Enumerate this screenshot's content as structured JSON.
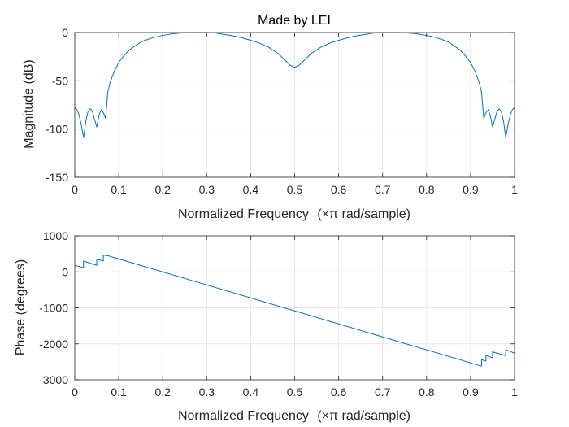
{
  "colors": {
    "series": "#0072BD",
    "grid": "#e6e6e6",
    "axis": "#262626",
    "background": "#ffffff"
  },
  "chart_data": [
    {
      "type": "line",
      "title": "Made by LEI",
      "xlabel_main": "Normalized Frequency",
      "xlabel_unit": "(×π rad/sample)",
      "ylabel": "Magnitude (dB)",
      "xlim": [
        0,
        1
      ],
      "ylim": [
        -150,
        0
      ],
      "xticks": [
        0,
        0.1,
        0.2,
        0.3,
        0.4,
        0.5,
        0.6,
        0.7,
        0.8,
        0.9,
        1
      ],
      "xtick_labels": [
        "0",
        "0.1",
        "0.2",
        "0.3",
        "0.4",
        "0.5",
        "0.6",
        "0.7",
        "0.8",
        "0.9",
        "1"
      ],
      "yticks": [
        0,
        -50,
        -100,
        -150
      ],
      "ytick_labels": [
        "0",
        "-50",
        "-100",
        "-150"
      ],
      "grid": true,
      "series": [
        {
          "x": [
            0,
            0.005,
            0.01,
            0.015,
            0.02,
            0.025,
            0.03,
            0.035,
            0.04,
            0.045,
            0.05,
            0.055,
            0.06,
            0.065,
            0.07,
            0.075,
            0.08,
            0.09,
            0.1,
            0.11,
            0.12,
            0.13,
            0.14,
            0.15,
            0.16,
            0.18,
            0.2,
            0.22,
            0.24,
            0.26,
            0.28,
            0.3,
            0.32,
            0.34,
            0.36,
            0.38,
            0.4,
            0.42,
            0.44,
            0.46,
            0.47,
            0.48,
            0.49,
            0.5,
            0.51,
            0.52,
            0.53,
            0.54,
            0.56,
            0.58,
            0.6,
            0.62,
            0.64,
            0.66,
            0.68,
            0.7,
            0.72,
            0.74,
            0.76,
            0.78,
            0.8,
            0.82,
            0.84,
            0.85,
            0.86,
            0.87,
            0.88,
            0.89,
            0.9,
            0.91,
            0.92,
            0.925,
            0.93,
            0.935,
            0.94,
            0.945,
            0.95,
            0.955,
            0.96,
            0.965,
            0.97,
            0.975,
            0.98,
            0.985,
            0.99,
            0.995,
            1
          ],
          "y": [
            -78,
            -80,
            -86,
            -96,
            -109,
            -92,
            -82,
            -79,
            -82,
            -90,
            -98,
            -86,
            -80,
            -83,
            -89,
            -62,
            -52,
            -40,
            -31,
            -25,
            -20,
            -16,
            -13,
            -10,
            -8,
            -5,
            -3,
            -1.5,
            -0.5,
            -0.1,
            0,
            0,
            -0.5,
            -2,
            -3.5,
            -5.5,
            -8,
            -11,
            -15,
            -21,
            -25,
            -29.5,
            -34,
            -36,
            -34,
            -29.5,
            -25,
            -21,
            -15,
            -11,
            -8,
            -5.5,
            -3.5,
            -2,
            -0.5,
            0,
            0,
            -0.1,
            -0.5,
            -1.5,
            -3,
            -5,
            -8,
            -10,
            -13,
            -16,
            -20,
            -25,
            -31,
            -40,
            -52,
            -62,
            -89,
            -83,
            -80,
            -86,
            -98,
            -90,
            -82,
            -79,
            -82,
            -92,
            -109,
            -96,
            -86,
            -80,
            -78
          ]
        }
      ]
    },
    {
      "type": "line",
      "xlabel_main": "Normalized Frequency",
      "xlabel_unit": "(×π rad/sample)",
      "ylabel": "Phase (degrees)",
      "xlim": [
        0,
        1
      ],
      "ylim": [
        -3000,
        1000
      ],
      "xticks": [
        0,
        0.1,
        0.2,
        0.3,
        0.4,
        0.5,
        0.6,
        0.7,
        0.8,
        0.9,
        1
      ],
      "xtick_labels": [
        "0",
        "0.1",
        "0.2",
        "0.3",
        "0.4",
        "0.5",
        "0.6",
        "0.7",
        "0.8",
        "0.9",
        "1"
      ],
      "yticks": [
        1000,
        0,
        -1000,
        -2000,
        -3000
      ],
      "ytick_labels": [
        "1000",
        "0",
        "-1000",
        "-2000",
        "-3000"
      ],
      "grid": true,
      "series": [
        {
          "x": [
            0,
            0.02,
            0.02,
            0.05,
            0.05,
            0.065,
            0.065,
            0.075,
            0.925,
            0.925,
            0.935,
            0.935,
            0.95,
            0.95,
            0.98,
            0.98,
            1
          ],
          "y": [
            180,
            120,
            300,
            180,
            360,
            300,
            460,
            450,
            -2620,
            -2440,
            -2480,
            -2320,
            -2390,
            -2220,
            -2330,
            -2160,
            -2260
          ]
        }
      ]
    }
  ]
}
